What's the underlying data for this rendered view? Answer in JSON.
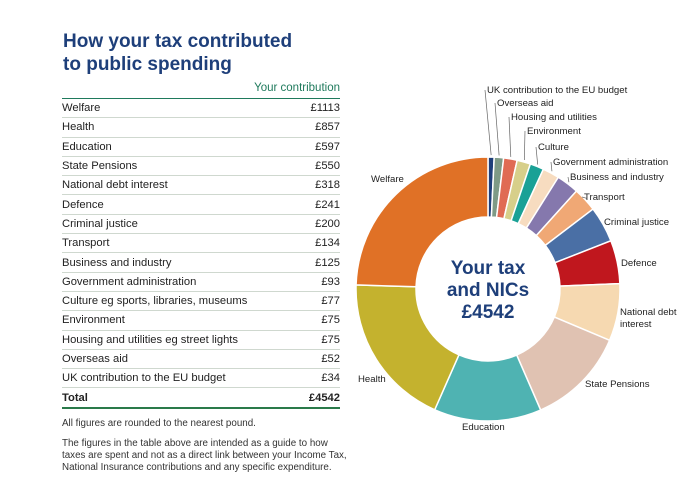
{
  "title": [
    "How your tax contributed",
    "to public spending"
  ],
  "column_header": "Your contribution",
  "rows": [
    {
      "label": "Welfare",
      "value": "£1113",
      "amount": 1113,
      "color": "#e07126"
    },
    {
      "label": "Health",
      "value": "£857",
      "amount": 857,
      "color": "#c4b22e"
    },
    {
      "label": "Education",
      "value": "£597",
      "amount": 597,
      "color": "#4fb3b2"
    },
    {
      "label": "State Pensions",
      "value": "£550",
      "amount": 550,
      "color": "#e0c2b2"
    },
    {
      "label": "National debt interest",
      "value": "£318",
      "amount": 318,
      "color": "#f6d9b1"
    },
    {
      "label": "Defence",
      "value": "£241",
      "amount": 241,
      "color": "#c0171e"
    },
    {
      "label": "Criminal justice",
      "value": "£200",
      "amount": 200,
      "color": "#4a6fa5"
    },
    {
      "label": "Transport",
      "value": "£134",
      "amount": 134,
      "color": "#f0a875"
    },
    {
      "label": "Business and industry",
      "value": "£125",
      "amount": 125,
      "color": "#8578ad"
    },
    {
      "label": "Government administration",
      "value": "£93",
      "amount": 93,
      "color": "#f7dcc0"
    },
    {
      "label": "Culture eg sports, libraries, museums",
      "value": "£77",
      "amount": 77,
      "color": "#1aa196"
    },
    {
      "label": "Environment",
      "value": "£75",
      "amount": 75,
      "color": "#d7cf8a"
    },
    {
      "label": "Housing and utilities eg street lights",
      "value": "£75",
      "amount": 75,
      "color": "#e06b54"
    },
    {
      "label": "Overseas aid",
      "value": "£52",
      "amount": 52,
      "color": "#7e9a86"
    },
    {
      "label": "UK contribution to the EU budget",
      "value": "£34",
      "amount": 34,
      "color": "#1f3f7a"
    }
  ],
  "total": {
    "label": "Total",
    "value": "£4542"
  },
  "notes": [
    "All figures are rounded to the nearest pound.",
    "The figures in the table above are intended as a guide to how taxes are spent and not as a direct link between your Income Tax, National Insurance contributions and any specific expenditure."
  ],
  "chart_data": {
    "type": "pie",
    "center_text": [
      "Your tax",
      "and NICs",
      "£4542"
    ],
    "categories": [
      "Welfare",
      "Health",
      "Education",
      "State Pensions",
      "National debt interest",
      "Defence",
      "Criminal justice",
      "Transport",
      "Business and industry",
      "Government administration",
      "Culture",
      "Environment",
      "Housing and utilities",
      "Overseas aid",
      "UK contribution to the EU budget"
    ],
    "values": [
      1113,
      857,
      597,
      550,
      318,
      241,
      200,
      134,
      125,
      93,
      77,
      75,
      75,
      52,
      34
    ],
    "labels": [
      "Welfare",
      "Health",
      "Education",
      "State Pensions",
      [
        "National debt",
        "interest"
      ],
      "Defence",
      "Criminal justice",
      "Transport",
      "Business and industry",
      "Government administration",
      "Culture",
      "Environment",
      "Housing and utilities",
      "Overseas aid",
      "UK contribution to the EU budget"
    ]
  }
}
